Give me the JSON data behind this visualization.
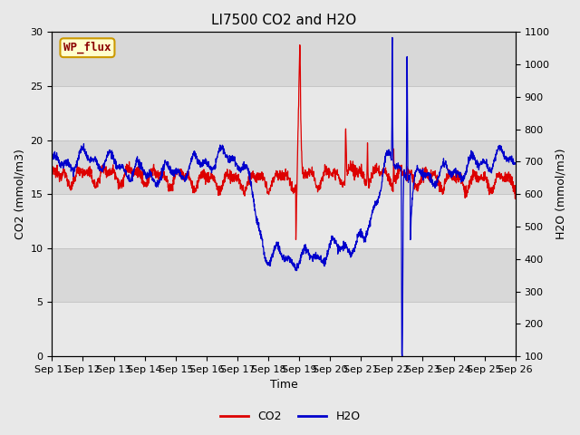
{
  "title": "LI7500 CO2 and H2O",
  "xlabel": "Time",
  "ylabel_left": "CO2 (mmol/m3)",
  "ylabel_right": "H2O (mmol/m3)",
  "xlim_days": [
    0,
    15
  ],
  "ylim_left": [
    0,
    30
  ],
  "ylim_right": [
    100,
    1100
  ],
  "xtick_labels": [
    "Sep 11",
    "Sep 12",
    "Sep 13",
    "Sep 14",
    "Sep 15",
    "Sep 16",
    "Sep 17",
    "Sep 18",
    "Sep 19",
    "Sep 20",
    "Sep 21",
    "Sep 22",
    "Sep 23",
    "Sep 24",
    "Sep 25",
    "Sep 26"
  ],
  "yticks_left": [
    0,
    5,
    10,
    15,
    20,
    25,
    30
  ],
  "yticks_right": [
    100,
    200,
    300,
    400,
    500,
    600,
    700,
    800,
    900,
    1000,
    1100
  ],
  "co2_color": "#dd0000",
  "h2o_color": "#0000cc",
  "background_color": "#e8e8e8",
  "plot_bg_color": "#d8d8d8",
  "grid_color": "#f0f0f0",
  "annotation_text": "WP_flux",
  "annotation_bg": "#ffffcc",
  "annotation_border": "#cc9900",
  "legend_co2": "CO2",
  "legend_h2o": "H2O",
  "title_fontsize": 11,
  "label_fontsize": 9,
  "tick_fontsize": 8,
  "legend_fontsize": 9
}
